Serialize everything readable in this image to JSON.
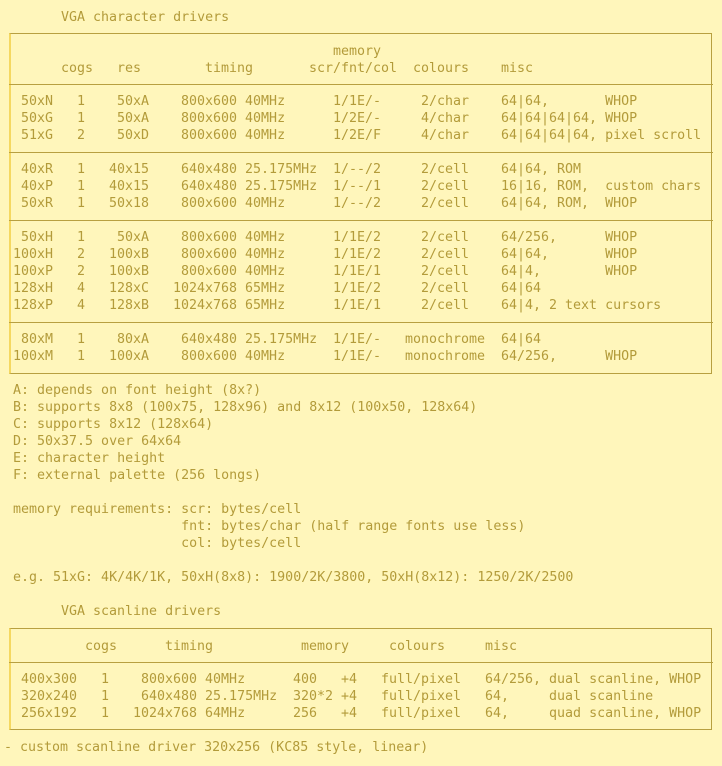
{
  "char_title": "VGA character drivers",
  "char_table": {
    "headers": {
      "memory_top": "memory",
      "cogs": "cogs",
      "res": "res",
      "timing": "timing",
      "memory": "scr/fnt/col",
      "colours": "colours",
      "misc": "misc"
    },
    "groups": [
      [
        {
          "name": "50xN",
          "cogs": "1",
          "res": "50xA",
          "timing": "800x600 40MHz",
          "memory": "1/1E/-",
          "colours": "2/char",
          "misc": "64|64,       WHOP"
        },
        {
          "name": "50xG",
          "cogs": "1",
          "res": "50xA",
          "timing": "800x600 40MHz",
          "memory": "1/2E/-",
          "colours": "4/char",
          "misc": "64|64|64|64, WHOP"
        },
        {
          "name": "51xG",
          "cogs": "2",
          "res": "50xD",
          "timing": "800x600 40MHz",
          "memory": "1/2E/F",
          "colours": "4/char",
          "misc": "64|64|64|64, pixel scroll"
        }
      ],
      [
        {
          "name": "40xR",
          "cogs": "1",
          "res": "40x15",
          "timing": "640x480 25.175MHz",
          "memory": "1/--/2",
          "colours": "2/cell",
          "misc": "64|64, ROM"
        },
        {
          "name": "40xP",
          "cogs": "1",
          "res": "40x15",
          "timing": "640x480 25.175MHz",
          "memory": "1/--/1",
          "colours": "2/cell",
          "misc": "16|16, ROM,  custom chars"
        },
        {
          "name": "50xR",
          "cogs": "1",
          "res": "50x18",
          "timing": "800x600 40MHz",
          "memory": "1/--/2",
          "colours": "2/cell",
          "misc": "64|64, ROM,  WHOP"
        }
      ],
      [
        {
          "name": "50xH",
          "cogs": "1",
          "res": "50xA",
          "timing": "800x600 40MHz",
          "memory": "1/1E/2",
          "colours": "2/cell",
          "misc": "64/256,      WHOP"
        },
        {
          "name": "100xH",
          "cogs": "2",
          "res": "100xB",
          "timing": "800x600 40MHz",
          "memory": "1/1E/2",
          "colours": "2/cell",
          "misc": "64|64,       WHOP"
        },
        {
          "name": "100xP",
          "cogs": "2",
          "res": "100xB",
          "timing": "800x600 40MHz",
          "memory": "1/1E/1",
          "colours": "2/cell",
          "misc": "64|4,        WHOP"
        },
        {
          "name": "128xH",
          "cogs": "4",
          "res": "128xC",
          "timing": "1024x768 65MHz",
          "memory": "1/1E/2",
          "colours": "2/cell",
          "misc": "64|64"
        },
        {
          "name": "128xP",
          "cogs": "4",
          "res": "128xB",
          "timing": "1024x768 65MHz",
          "memory": "1/1E/1",
          "colours": "2/cell",
          "misc": "64|4, 2 text cursors"
        }
      ],
      [
        {
          "name": "80xM",
          "cogs": "1",
          "res": "80xA",
          "timing": "640x480 25.175MHz",
          "memory": "1/1E/-",
          "colours": "monochrome",
          "misc": "64|64"
        },
        {
          "name": "100xM",
          "cogs": "1",
          "res": "100xA",
          "timing": "800x600 40MHz",
          "memory": "1/1E/-",
          "colours": "monochrome",
          "misc": "64/256,      WHOP"
        }
      ]
    ]
  },
  "notes": [
    "A: depends on font height (8x?)",
    "B: supports 8x8 (100x75, 128x96) and 8x12 (100x50, 128x64)",
    "C: supports 8x12 (128x64)",
    "D: 50x37.5 over 64x64",
    "E: character height",
    "F: external palette (256 longs)"
  ],
  "memory_requirements": [
    "memory requirements: scr: bytes/cell",
    "                     fnt: bytes/char (half range fonts use less)",
    "                     col: bytes/cell"
  ],
  "example": "e.g. 51xG: 4K/4K/1K, 50xH(8x8): 1900/2K/3800, 50xH(8x12): 1250/2K/2500",
  "scan_title": "VGA scanline drivers",
  "scan_table": {
    "headers": {
      "cogs": "cogs",
      "timing": "timing",
      "memory": "memory",
      "colours": "colours",
      "misc": "misc"
    },
    "rows": [
      {
        "name": "400x300",
        "cogs": "1",
        "timing": "800x600 40MHz",
        "memory": "400   +4",
        "colours": "full/pixel",
        "misc": "64/256, dual scanline, WHOP"
      },
      {
        "name": "320x240",
        "cogs": "1",
        "timing": "640x480 25.175MHz",
        "memory": "320*2 +4",
        "colours": "full/pixel",
        "misc": "64,     dual scanline"
      },
      {
        "name": "256x192",
        "cogs": "1",
        "timing": "1024x768 64MHz",
        "memory": "256   +4",
        "colours": "full/pixel",
        "misc": "64,     quad scanline, WHOP"
      }
    ]
  },
  "footer": "- custom scanline driver 320x256 (KC85 style, linear)"
}
